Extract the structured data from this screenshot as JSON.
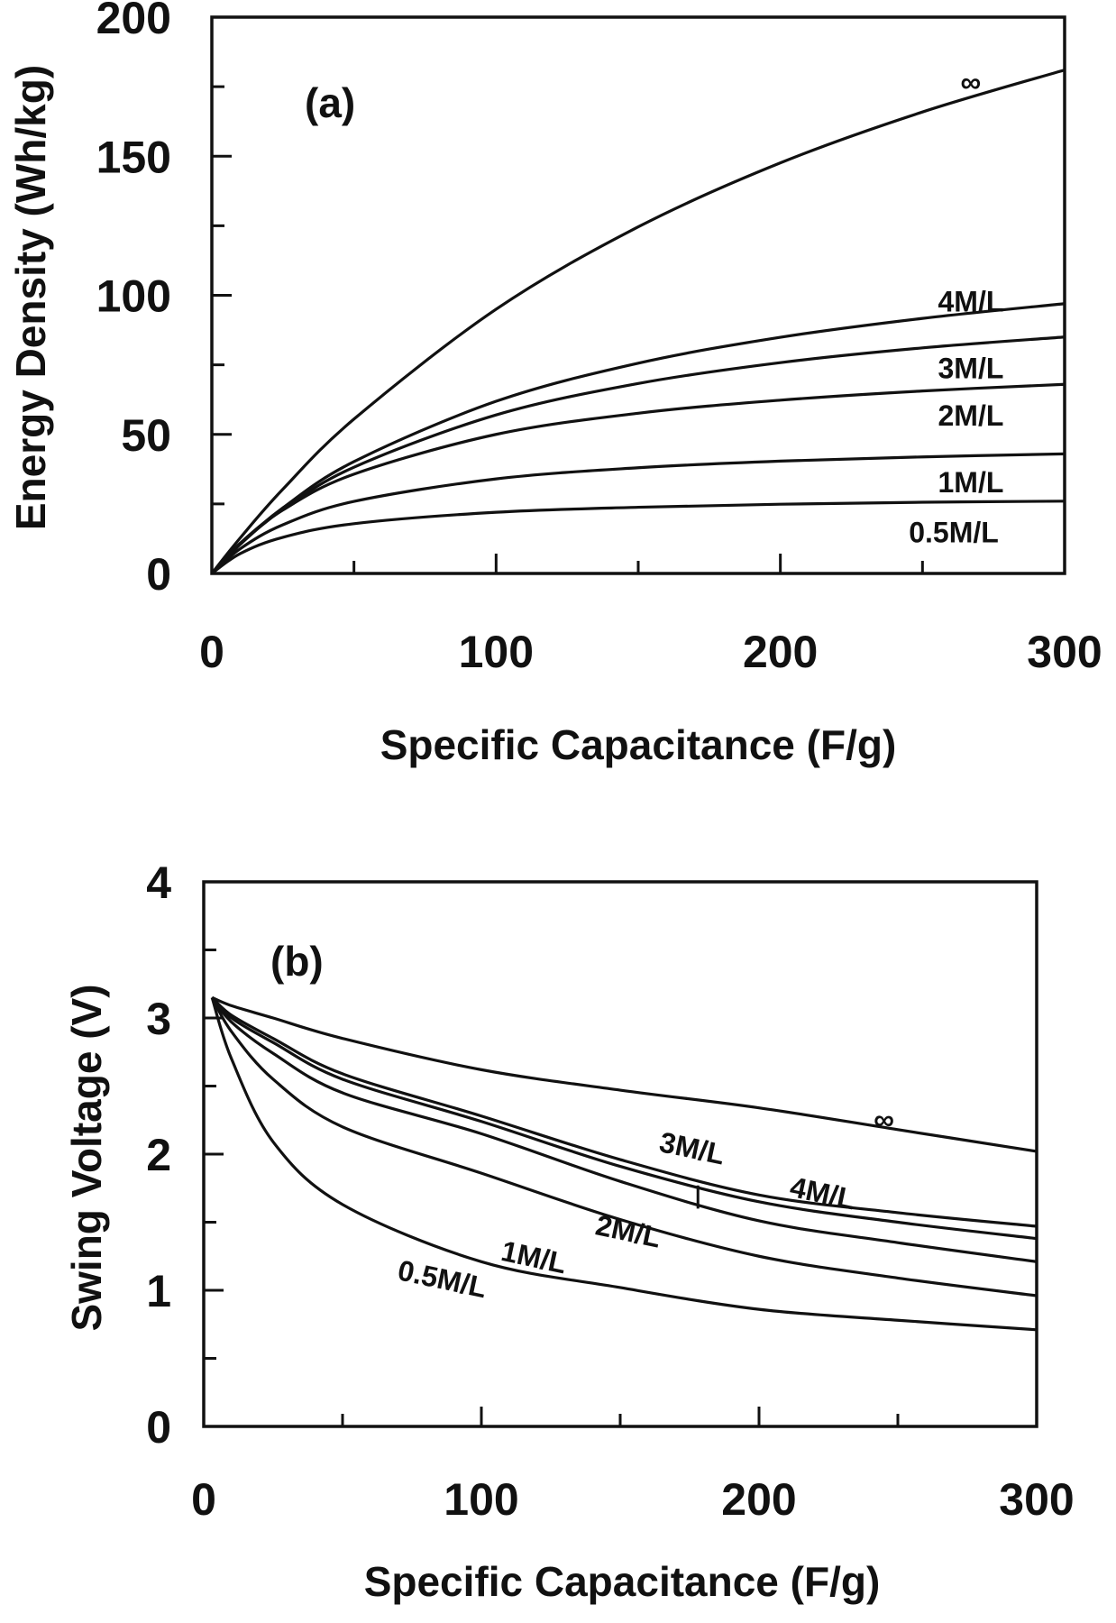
{
  "chart_data": [
    {
      "type": "line",
      "panel_label": "(a)",
      "xlabel": "Specific Capacitance (F/g)",
      "ylabel": "Energy Density (Wh/kg)",
      "xlim": [
        0,
        300
      ],
      "ylim": [
        0,
        200
      ],
      "xticks": [
        0,
        100,
        200,
        300
      ],
      "xminor": [
        50,
        150,
        250
      ],
      "yticks": [
        0,
        50,
        100,
        150,
        200
      ],
      "yminor": [
        25,
        75,
        125,
        175
      ],
      "grid": false,
      "x": [
        0,
        10,
        25,
        50,
        100,
        150,
        200,
        250,
        300
      ],
      "series": [
        {
          "name": "∞",
          "values": [
            0,
            12.8,
            30.3,
            55.5,
            95,
            124.6,
            147.6,
            165.9,
            181
          ],
          "label_at": [
            267,
            177
          ]
        },
        {
          "name": "4M/L",
          "values": [
            0,
            10.5,
            23.6,
            40.2,
            61.9,
            75.6,
            84.9,
            91.7,
            97
          ],
          "label_at": [
            267,
            98
          ]
        },
        {
          "name": "3M/L",
          "values": [
            0,
            10.5,
            23.0,
            38.2,
            57,
            68.3,
            75.8,
            81.1,
            85
          ],
          "label_at": [
            267,
            74
          ]
        },
        {
          "name": "2M/L",
          "values": [
            0,
            10.9,
            22.8,
            35.7,
            50,
            57.6,
            62.3,
            65.6,
            68
          ],
          "label_at": [
            267,
            57
          ]
        },
        {
          "name": "1M/L",
          "values": [
            0,
            8.9,
            17.5,
            25.9,
            34,
            38.0,
            40.4,
            41.9,
            43
          ],
          "label_at": [
            267,
            33
          ]
        },
        {
          "name": "0.5M/L",
          "values": [
            0,
            7.15,
            13.0,
            17.9,
            22,
            23.8,
            24.9,
            25.6,
            26
          ],
          "label_at": [
            261,
            15
          ]
        }
      ]
    },
    {
      "type": "line",
      "panel_label": "(b)",
      "xlabel": "Specific Capacitance (F/g)",
      "ylabel": "Swing Voltage (V)",
      "xlim": [
        0,
        300
      ],
      "ylim": [
        0,
        4
      ],
      "xticks": [
        0,
        100,
        200,
        300
      ],
      "xminor": [
        50,
        150,
        250
      ],
      "yticks": [
        0,
        1,
        2,
        3,
        4
      ],
      "yminor": [
        0.5,
        1.5,
        2.5,
        3.5
      ],
      "grid": false,
      "x": [
        3,
        10,
        25,
        50,
        100,
        150,
        200,
        250,
        300
      ],
      "series": [
        {
          "name": "∞",
          "values": [
            3.15,
            3.09,
            3.0,
            2.85,
            2.62,
            2.47,
            2.34,
            2.18,
            2.02
          ],
          "label_at": [
            245,
            2.26
          ]
        },
        {
          "name": "4M/L",
          "values": [
            3.15,
            3.02,
            2.85,
            2.59,
            2.28,
            1.96,
            1.7,
            1.57,
            1.47
          ],
          "label_at": [
            223,
            1.72
          ]
        },
        {
          "name": "3M/L",
          "values": [
            3.15,
            3.0,
            2.82,
            2.55,
            2.24,
            1.91,
            1.65,
            1.5,
            1.38
          ],
          "label_at": [
            176,
            2.05
          ]
        },
        {
          "name": "2M/L",
          "values": [
            3.15,
            2.97,
            2.74,
            2.45,
            2.15,
            1.8,
            1.51,
            1.35,
            1.21
          ],
          "label_at": [
            153,
            1.44
          ]
        },
        {
          "name": "1M/L",
          "values": [
            3.15,
            2.9,
            2.55,
            2.2,
            1.86,
            1.52,
            1.25,
            1.09,
            0.96
          ],
          "label_at": [
            119,
            1.25
          ]
        },
        {
          "name": "0.5M/L",
          "values": [
            3.15,
            2.7,
            2.09,
            1.63,
            1.21,
            1.02,
            0.86,
            0.78,
            0.71
          ],
          "label_at": [
            86,
            1.09
          ]
        }
      ],
      "pointer": {
        "x": 178,
        "y": [
          1.6,
          1.77
        ]
      }
    }
  ]
}
